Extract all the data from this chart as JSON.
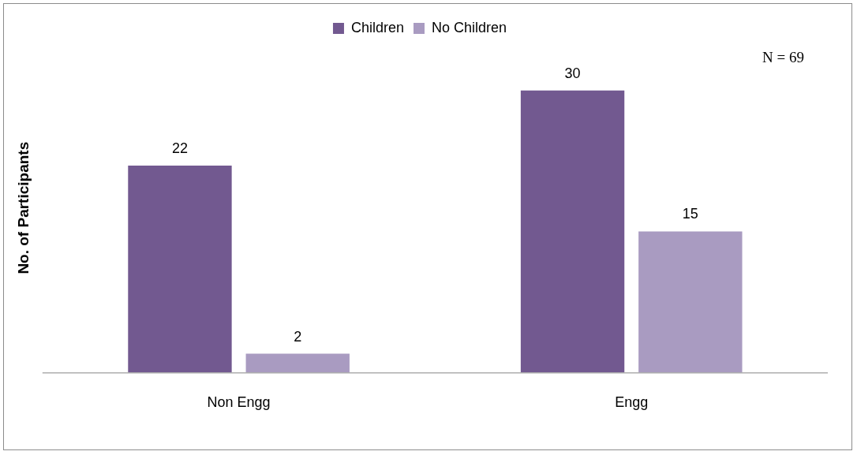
{
  "chart_data": {
    "type": "bar",
    "ylabel": "No. of Participants",
    "categories": [
      "Non Engg",
      "Engg"
    ],
    "series": [
      {
        "name": "Children",
        "color": "#725990",
        "values": [
          22,
          30
        ]
      },
      {
        "name": "No Children",
        "color": "#a99bc1",
        "values": [
          2,
          15
        ]
      }
    ],
    "data_labels": true,
    "legend": "top",
    "grid": false,
    "annotations": [
      "N = 69"
    ]
  }
}
